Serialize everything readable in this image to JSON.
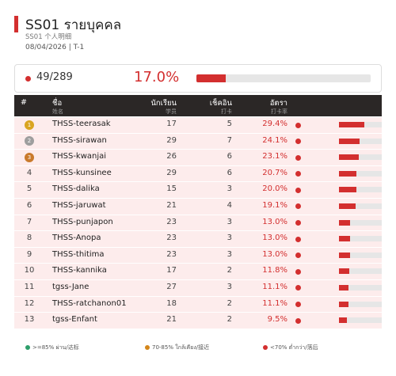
{
  "header": {
    "title": "SS01  รายบุคคล",
    "subtitle": "SS01  个人明细",
    "meta": "08/04/2026  |  T-1"
  },
  "summary": {
    "count": "49/289",
    "percent_text": "17.0%",
    "percent_value": 17.0
  },
  "table": {
    "headers": {
      "rank": "#",
      "name": "ชื่อ",
      "name_sub": "姓名",
      "students": "นักเรียน",
      "students_sub": "学员",
      "checkins": "เช็คอิน",
      "checkins_sub": "打卡",
      "rate": "อัตรา",
      "rate_sub": "打卡率"
    },
    "rows": [
      {
        "rank": "1",
        "medal": "gold",
        "name": "THSS-teerasak",
        "students": "17",
        "checkins": "5",
        "rate": "29.4%",
        "rate_value": 29.4
      },
      {
        "rank": "2",
        "medal": "silver",
        "name": "THSS-sirawan",
        "students": "29",
        "checkins": "7",
        "rate": "24.1%",
        "rate_value": 24.1
      },
      {
        "rank": "3",
        "medal": "bronze",
        "name": "THSS-kwanjai",
        "students": "26",
        "checkins": "6",
        "rate": "23.1%",
        "rate_value": 23.1
      },
      {
        "rank": "4",
        "medal": "",
        "name": "THSS-kunsinee",
        "students": "29",
        "checkins": "6",
        "rate": "20.7%",
        "rate_value": 20.7
      },
      {
        "rank": "5",
        "medal": "",
        "name": "THSS-dalika",
        "students": "15",
        "checkins": "3",
        "rate": "20.0%",
        "rate_value": 20.0
      },
      {
        "rank": "6",
        "medal": "",
        "name": "THSS-jaruwat",
        "students": "21",
        "checkins": "4",
        "rate": "19.1%",
        "rate_value": 19.1
      },
      {
        "rank": "7",
        "medal": "",
        "name": "THSS-punjapon",
        "students": "23",
        "checkins": "3",
        "rate": "13.0%",
        "rate_value": 13.0
      },
      {
        "rank": "8",
        "medal": "",
        "name": "THSS-Anopa",
        "students": "23",
        "checkins": "3",
        "rate": "13.0%",
        "rate_value": 13.0
      },
      {
        "rank": "9",
        "medal": "",
        "name": "THSS-thitima",
        "students": "23",
        "checkins": "3",
        "rate": "13.0%",
        "rate_value": 13.0
      },
      {
        "rank": "10",
        "medal": "",
        "name": "THSS-kannika",
        "students": "17",
        "checkins": "2",
        "rate": "11.8%",
        "rate_value": 11.8
      },
      {
        "rank": "11",
        "medal": "",
        "name": "tgss-Jane",
        "students": "27",
        "checkins": "3",
        "rate": "11.1%",
        "rate_value": 11.1
      },
      {
        "rank": "12",
        "medal": "",
        "name": "THSS-ratchanon01",
        "students": "18",
        "checkins": "2",
        "rate": "11.1%",
        "rate_value": 11.1
      },
      {
        "rank": "13",
        "medal": "",
        "name": "tgss-Enfant",
        "students": "21",
        "checkins": "2",
        "rate": "9.5%",
        "rate_value": 9.5
      }
    ]
  },
  "legend": [
    {
      "label": ">=85% ผ่าน/达标",
      "color": "#2e9e6b"
    },
    {
      "label": "70-85% ใกล้เคียง/接近",
      "color": "#d4861a"
    },
    {
      "label": "<70% ต่ำกว่า/落后",
      "color": "#d32f2f"
    }
  ],
  "colors": {
    "accent": "#d32f2f",
    "gold": "#d9a521",
    "silver": "#9e9e9e",
    "bronze": "#c97a2c",
    "row_bg": "#fdecec",
    "header_bg": "#2b2726"
  }
}
